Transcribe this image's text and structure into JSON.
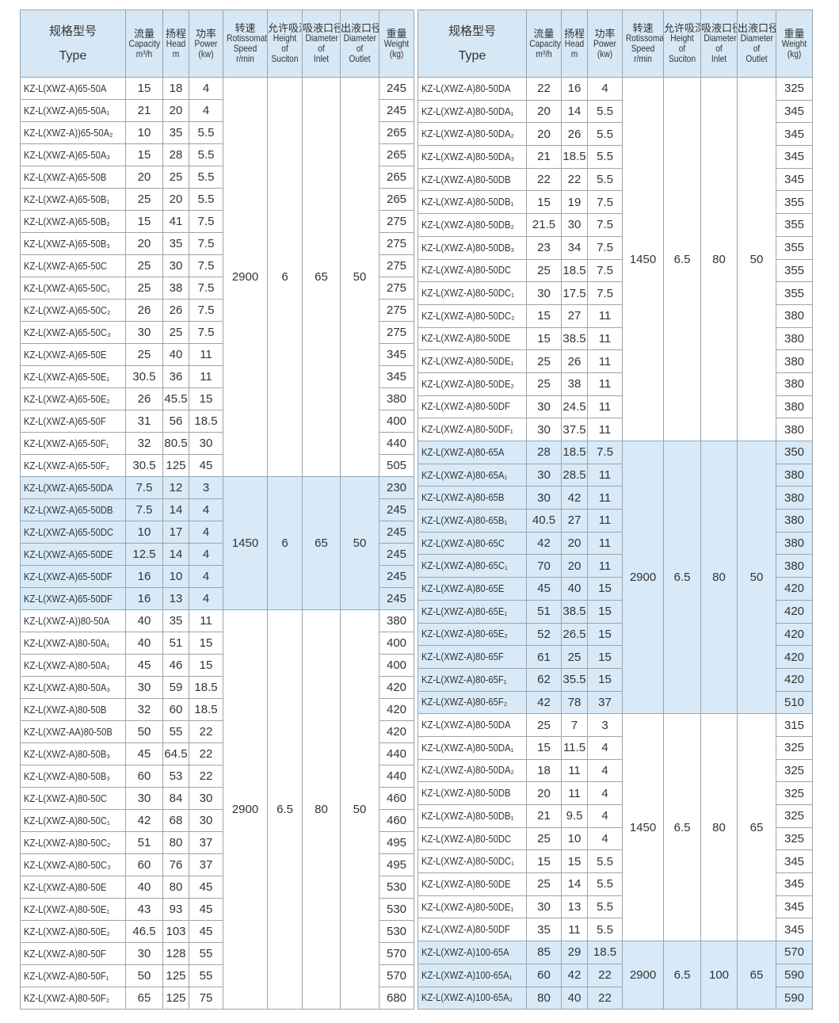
{
  "headers": [
    {
      "cn": "规格型号",
      "en": [
        "Type"
      ]
    },
    {
      "cn": "流量",
      "en": [
        "Capacity",
        "m³/h"
      ]
    },
    {
      "cn": "扬程",
      "en": [
        "Head",
        "m"
      ]
    },
    {
      "cn": "功率",
      "en": [
        "Power",
        "(kw)"
      ]
    },
    {
      "cn": "转速",
      "en": [
        "Rotissomat",
        "Speed",
        "r/min"
      ]
    },
    {
      "cn": "允许吸深",
      "en": [
        "Height",
        "of",
        "Suciton"
      ]
    },
    {
      "cn": "吸液口径",
      "en": [
        "Diameter",
        "of",
        "Inlet"
      ]
    },
    {
      "cn": "出液口径",
      "en": [
        "Diameter",
        "of",
        "Outlet"
      ]
    },
    {
      "cn": "重量",
      "en": [
        "Weight",
        "(kg)"
      ]
    }
  ],
  "tables": [
    {
      "groups": [
        {
          "speed": "2900",
          "height": "6",
          "inlet": "65",
          "outlet": "50",
          "highlight": false,
          "rows": [
            [
              "KZ-L(XWZ-A)65-50A",
              "15",
              "18",
              "4",
              "245"
            ],
            [
              "KZ-L(XWZ-A)65-50A₁",
              "21",
              "20",
              "4",
              "245"
            ],
            [
              "KZ-L(XWZ-A))65-50A₂",
              "10",
              "35",
              "5.5",
              "265"
            ],
            [
              "KZ-L(XWZ-A)65-50A₃",
              "15",
              "28",
              "5.5",
              "265"
            ],
            [
              "KZ-L(XWZ-A)65-50B",
              "20",
              "25",
              "5.5",
              "265"
            ],
            [
              "KZ-L(XWZ-A)65-50B₁",
              "25",
              "20",
              "5.5",
              "265"
            ],
            [
              "KZ-L(XWZ-A)65-50B₂",
              "15",
              "41",
              "7.5",
              "275"
            ],
            [
              "KZ-L(XWZ-A)65-50B₃",
              "20",
              "35",
              "7.5",
              "275"
            ],
            [
              "KZ-L(XWZ-A)65-50C",
              "25",
              "30",
              "7.5",
              "275"
            ],
            [
              "KZ-L(XWZ-A)65-50C₁",
              "25",
              "38",
              "7.5",
              "275"
            ],
            [
              "KZ-L(XWZ-A)65-50C₂",
              "26",
              "26",
              "7.5",
              "275"
            ],
            [
              "KZ-L(XWZ-A)65-50C₃",
              "30",
              "25",
              "7.5",
              "275"
            ],
            [
              "KZ-L(XWZ-A)65-50E",
              "25",
              "40",
              "11",
              "345"
            ],
            [
              "KZ-L(XWZ-A)65-50E₁",
              "30.5",
              "36",
              "11",
              "345"
            ],
            [
              "KZ-L(XWZ-A)65-50E₂",
              "26",
              "45.5",
              "15",
              "380"
            ],
            [
              "KZ-L(XWZ-A)65-50F",
              "31",
              "56",
              "18.5",
              "400"
            ],
            [
              "KZ-L(XWZ-A)65-50F₁",
              "32",
              "80.5",
              "30",
              "440"
            ],
            [
              "KZ-L(XWZ-A)65-50F₂",
              "30.5",
              "125",
              "45",
              "505"
            ]
          ]
        },
        {
          "speed": "1450",
          "height": "6",
          "inlet": "65",
          "outlet": "50",
          "highlight": true,
          "rows": [
            [
              "KZ-L(XWZ-A)65-50DA",
              "7.5",
              "12",
              "3",
              "230"
            ],
            [
              "KZ-L(XWZ-A)65-50DB",
              "7.5",
              "14",
              "4",
              "245"
            ],
            [
              "KZ-L(XWZ-A)65-50DC",
              "10",
              "17",
              "4",
              "245"
            ],
            [
              "KZ-L(XWZ-A)65-50DE",
              "12.5",
              "14",
              "4",
              "245"
            ],
            [
              "KZ-L(XWZ-A)65-50DF",
              "16",
              "10",
              "4",
              "245"
            ],
            [
              "KZ-L(XWZ-A)65-50DF",
              "16",
              "13",
              "4",
              "245"
            ]
          ]
        },
        {
          "speed": "2900",
          "height": "6.5",
          "inlet": "80",
          "outlet": "50",
          "highlight": false,
          "rows": [
            [
              "KZ-L(XWZ-A))80-50A",
              "40",
              "35",
              "11",
              "380"
            ],
            [
              "KZ-L(XWZ-A)80-50A₁",
              "40",
              "51",
              "15",
              "400"
            ],
            [
              "KZ-L(XWZ-A)80-50A₂",
              "45",
              "46",
              "15",
              "400"
            ],
            [
              "KZ-L(XWZ-A)80-50A₃",
              "30",
              "59",
              "18.5",
              "420"
            ],
            [
              "KZ-L(XWZ-A)80-50B",
              "32",
              "60",
              "18.5",
              "420"
            ],
            [
              "KZ-L(XWZ-AA)80-50B",
              "50",
              "55",
              "22",
              "420"
            ],
            [
              "KZ-L(XWZ-A)80-50B₃",
              "45",
              "64.5",
              "22",
              "440"
            ],
            [
              "KZ-L(XWZ-A)80-50B₃",
              "60",
              "53",
              "22",
              "440"
            ],
            [
              "KZ-L(XWZ-A)80-50C",
              "30",
              "84",
              "30",
              "460"
            ],
            [
              "KZ-L(XWZ-A)80-50C₁",
              "42",
              "68",
              "30",
              "460"
            ],
            [
              "KZ-L(XWZ-A)80-50C₂",
              "51",
              "80",
              "37",
              "495"
            ],
            [
              "KZ-L(XWZ-A)80-50C₃",
              "60",
              "76",
              "37",
              "495"
            ],
            [
              "KZ-L(XWZ-A)80-50E",
              "40",
              "80",
              "45",
              "530"
            ],
            [
              "KZ-L(XWZ-A)80-50E₁",
              "43",
              "93",
              "45",
              "530"
            ],
            [
              "KZ-L(XWZ-A)80-50E₂",
              "46.5",
              "103",
              "45",
              "530"
            ],
            [
              "KZ-L(XWZ-A)80-50F",
              "30",
              "128",
              "55",
              "570"
            ],
            [
              "KZ-L(XWZ-A)80-50F₁",
              "50",
              "125",
              "55",
              "570"
            ],
            [
              "KZ-L(XWZ-A)80-50F₂",
              "65",
              "125",
              "75",
              "680"
            ]
          ]
        }
      ]
    },
    {
      "groups": [
        {
          "speed": "1450",
          "height": "6.5",
          "inlet": "80",
          "outlet": "50",
          "highlight": false,
          "rows": [
            [
              "KZ-L(XWZ-A)80-50DA",
              "22",
              "16",
              "4",
              "325"
            ],
            [
              "KZ-L(XWZ-A)80-50DA₁",
              "20",
              "14",
              "5.5",
              "345"
            ],
            [
              "KZ-L(XWZ-A)80-50DA₂",
              "20",
              "26",
              "5.5",
              "345"
            ],
            [
              "KZ-L(XWZ-A)80-50DA₃",
              "21",
              "18.5",
              "5.5",
              "345"
            ],
            [
              "KZ-L(XWZ-A)80-50DB",
              "22",
              "22",
              "5.5",
              "345"
            ],
            [
              "KZ-L(XWZ-A)80-50DB₁",
              "15",
              "19",
              "7.5",
              "355"
            ],
            [
              "KZ-L(XWZ-A)80-50DB₂",
              "21.5",
              "30",
              "7.5",
              "355"
            ],
            [
              "KZ-L(XWZ-A)80-50DB₃",
              "23",
              "34",
              "7.5",
              "355"
            ],
            [
              "KZ-L(XWZ-A)80-50DC",
              "25",
              "18.5",
              "7.5",
              "355"
            ],
            [
              "KZ-L(XWZ-A)80-50DC₁",
              "30",
              "17.5",
              "7.5",
              "355"
            ],
            [
              "KZ-L(XWZ-A)80-50DC₂",
              "15",
              "27",
              "11",
              "380"
            ],
            [
              "KZ-L(XWZ-A)80-50DE",
              "15",
              "38.5",
              "11",
              "380"
            ],
            [
              "KZ-L(XWZ-A)80-50DE₁",
              "25",
              "26",
              "11",
              "380"
            ],
            [
              "KZ-L(XWZ-A)80-50DE₂",
              "25",
              "38",
              "11",
              "380"
            ],
            [
              "KZ-L(XWZ-A)80-50DF",
              "30",
              "24.5",
              "11",
              "380"
            ],
            [
              "KZ-L(XWZ-A)80-50DF₁",
              "30",
              "37.5",
              "11",
              "380"
            ]
          ]
        },
        {
          "speed": "2900",
          "height": "6.5",
          "inlet": "80",
          "outlet": "50",
          "highlight": true,
          "rows": [
            [
              "KZ-L(XWZ-A)80-65A",
              "28",
              "18.5",
              "7.5",
              "350"
            ],
            [
              "KZ-L(XWZ-A)80-65A₁",
              "30",
              "28.5",
              "11",
              "380"
            ],
            [
              "KZ-L(XWZ-A)80-65B",
              "30",
              "42",
              "11",
              "380"
            ],
            [
              "KZ-L(XWZ-A)80-65B₁",
              "40.5",
              "27",
              "11",
              "380"
            ],
            [
              "KZ-L(XWZ-A)80-65C",
              "42",
              "20",
              "11",
              "380"
            ],
            [
              "KZ-L(XWZ-A)80-65C₁",
              "70",
              "20",
              "11",
              "380"
            ],
            [
              "KZ-L(XWZ-A)80-65E",
              "45",
              "40",
              "15",
              "420"
            ],
            [
              "KZ-L(XWZ-A)80-65E₁",
              "51",
              "38.5",
              "15",
              "420"
            ],
            [
              "KZ-L(XWZ-A)80-65E₂",
              "52",
              "26.5",
              "15",
              "420"
            ],
            [
              "KZ-L(XWZ-A)80-65F",
              "61",
              "25",
              "15",
              "420"
            ],
            [
              "KZ-L(XWZ-A)80-65F₁",
              "62",
              "35.5",
              "15",
              "420"
            ],
            [
              "KZ-L(XWZ-A)80-65F₂",
              "42",
              "78",
              "37",
              "510"
            ]
          ]
        },
        {
          "speed": "1450",
          "height": "6.5",
          "inlet": "80",
          "outlet": "65",
          "highlight": false,
          "rows": [
            [
              "KZ-L(XWZ-A)80-50DA",
              "25",
              "7",
              "3",
              "315"
            ],
            [
              "KZ-L(XWZ-A)80-50DA₁",
              "15",
              "11.5",
              "4",
              "325"
            ],
            [
              "KZ-L(XWZ-A)80-50DA₂",
              "18",
              "11",
              "4",
              "325"
            ],
            [
              "KZ-L(XWZ-A)80-50DB",
              "20",
              "11",
              "4",
              "325"
            ],
            [
              "KZ-L(XWZ-A)80-50DB₁",
              "21",
              "9.5",
              "4",
              "325"
            ],
            [
              "KZ-L(XWZ-A)80-50DC",
              "25",
              "10",
              "4",
              "325"
            ],
            [
              "KZ-L(XWZ-A)80-50DC₁",
              "15",
              "15",
              "5.5",
              "345"
            ],
            [
              "KZ-L(XWZ-A)80-50DE",
              "25",
              "14",
              "5.5",
              "345"
            ],
            [
              "KZ-L(XWZ-A)80-50DE₁",
              "30",
              "13",
              "5.5",
              "345"
            ],
            [
              "KZ-L(XWZ-A)80-50DF",
              "35",
              "11",
              "5.5",
              "345"
            ]
          ]
        },
        {
          "speed": "2900",
          "height": "6.5",
          "inlet": "100",
          "outlet": "65",
          "highlight": true,
          "rows": [
            [
              "KZ-L(XWZ-A)100-65A",
              "85",
              "29",
              "18.5",
              "570"
            ],
            [
              "KZ-L(XWZ-A)100-65A₁",
              "60",
              "42",
              "22",
              "590"
            ],
            [
              "KZ-L(XWZ-A)100-65A₂",
              "80",
              "40",
              "22",
              "590"
            ]
          ]
        }
      ]
    }
  ]
}
